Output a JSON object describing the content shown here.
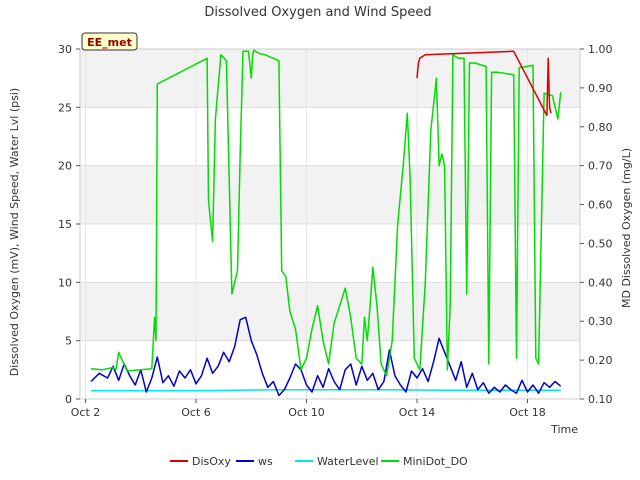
{
  "chart_data": {
    "type": "line",
    "title": "Dissolved Oxygen and Wind Speed",
    "xlabel": "Time",
    "ylabel": "Dissolved Oxygen (mV), Wind Speed, Water Lvl (psi)",
    "y2label": "MD Dissolved Oxygen (mg/L)",
    "badge": "EE_met",
    "xlim": [
      1.8,
      19.9
    ],
    "ylim": [
      0,
      30
    ],
    "y2lim": [
      0.1,
      1.0
    ],
    "x_ticks": [
      2,
      6,
      10,
      14,
      18
    ],
    "x_tick_labels": [
      "Oct 2",
      "Oct 6",
      "Oct 10",
      "Oct 14",
      "Oct 18"
    ],
    "y_ticks": [
      0,
      5,
      10,
      15,
      20,
      25,
      30
    ],
    "y2_ticks": [
      0.1,
      0.2,
      0.3,
      0.4,
      0.5,
      0.6,
      0.7,
      0.8,
      0.9,
      1.0
    ],
    "y2_tick_labels": [
      "0.10",
      "0.20",
      "0.30",
      "0.40",
      "0.50",
      "0.60",
      "0.70",
      "0.80",
      "0.90",
      "1.00"
    ],
    "grid": true,
    "banding": true,
    "legend_position": "bottom",
    "series": [
      {
        "name": "DisOxy",
        "color": "#dd0000",
        "axis": "left",
        "x": [
          14.0,
          14.05,
          14.1,
          14.3,
          17.5,
          18.7,
          18.75,
          18.8,
          18.85
        ],
        "y": [
          27.5,
          28.8,
          29.2,
          29.5,
          29.8,
          24.3,
          29.2,
          25.0,
          24.5
        ]
      },
      {
        "name": "ws",
        "color": "#0000cc",
        "axis": "left",
        "x": [
          2.2,
          2.5,
          2.8,
          3.0,
          3.2,
          3.4,
          3.6,
          3.8,
          4.0,
          4.2,
          4.4,
          4.6,
          4.8,
          5.0,
          5.2,
          5.4,
          5.6,
          5.8,
          6.0,
          6.2,
          6.4,
          6.6,
          6.8,
          7.0,
          7.2,
          7.4,
          7.6,
          7.8,
          8.0,
          8.2,
          8.4,
          8.6,
          8.8,
          9.0,
          9.2,
          9.4,
          9.6,
          9.8,
          10.0,
          10.2,
          10.4,
          10.6,
          10.8,
          11.0,
          11.2,
          11.4,
          11.6,
          11.8,
          12.0,
          12.2,
          12.4,
          12.6,
          12.8,
          13.0,
          13.2,
          13.4,
          13.6,
          13.8,
          14.0,
          14.2,
          14.4,
          14.6,
          14.8,
          15.0,
          15.2,
          15.4,
          15.6,
          15.8,
          16.0,
          16.2,
          16.4,
          16.6,
          16.8,
          17.0,
          17.2,
          17.4,
          17.6,
          17.8,
          18.0,
          18.2,
          18.4,
          18.6,
          18.8,
          19.0,
          19.2
        ],
        "y": [
          1.5,
          2.2,
          1.8,
          2.8,
          1.6,
          3.0,
          2.0,
          1.2,
          2.5,
          0.6,
          1.8,
          3.6,
          1.4,
          2.0,
          1.1,
          2.4,
          1.8,
          2.5,
          1.3,
          2.0,
          3.5,
          2.2,
          2.8,
          4.0,
          3.2,
          4.5,
          6.8,
          7.0,
          5.0,
          3.8,
          2.2,
          1.0,
          1.5,
          0.3,
          0.8,
          1.8,
          3.0,
          2.5,
          1.2,
          0.6,
          2.0,
          1.0,
          2.6,
          1.5,
          0.8,
          2.5,
          3.0,
          1.2,
          2.8,
          1.6,
          2.2,
          0.8,
          1.5,
          4.2,
          2.0,
          1.2,
          0.6,
          2.4,
          1.8,
          2.6,
          1.5,
          3.2,
          5.2,
          4.0,
          2.8,
          1.6,
          3.2,
          1.0,
          2.2,
          0.8,
          1.4,
          0.5,
          1.0,
          0.6,
          1.2,
          0.8,
          0.5,
          1.6,
          0.6,
          1.2,
          0.5,
          1.4,
          1.0,
          1.5,
          1.1
        ]
      },
      {
        "name": "WaterLevel",
        "color": "#00e5e5",
        "axis": "left",
        "x": [
          2.2,
          4.0,
          6.0,
          7.5,
          9.0,
          11.0,
          13.0,
          15.0,
          17.0,
          19.2
        ],
        "y": [
          0.7,
          0.7,
          0.7,
          0.75,
          0.8,
          0.8,
          0.8,
          0.75,
          0.75,
          0.75
        ]
      },
      {
        "name": "MiniDot_DO",
        "color": "#00dd00",
        "axis": "left",
        "x": [
          2.2,
          2.6,
          3.0,
          3.1,
          3.2,
          3.5,
          4.0,
          4.4,
          4.5,
          4.55,
          4.6,
          6.4,
          6.45,
          6.6,
          6.7,
          6.9,
          7.1,
          7.3,
          7.5,
          7.6,
          7.7,
          7.9,
          8.0,
          8.05,
          8.1,
          8.3,
          8.5,
          8.7,
          9.0,
          9.1,
          9.25,
          9.4,
          9.6,
          9.8,
          10.0,
          10.2,
          10.4,
          10.6,
          10.8,
          11.0,
          11.2,
          11.4,
          11.6,
          11.8,
          12.0,
          12.1,
          12.2,
          12.3,
          12.4,
          12.55,
          12.7,
          12.9,
          13.1,
          13.3,
          13.5,
          13.65,
          13.75,
          13.9,
          14.1,
          14.3,
          14.5,
          14.7,
          14.8,
          14.9,
          15.0,
          15.1,
          15.2,
          15.3,
          15.5,
          15.7,
          15.8,
          15.9,
          16.1,
          16.5,
          16.6,
          16.7,
          16.9,
          17.5,
          17.6,
          17.7,
          18.2,
          18.3,
          18.4,
          18.6,
          18.9,
          19.0,
          19.1,
          19.2
        ],
        "y": [
          2.6,
          2.5,
          2.7,
          2.5,
          4.0,
          2.4,
          2.5,
          2.6,
          7.0,
          5.0,
          27.0,
          29.2,
          17.0,
          13.5,
          24.0,
          29.5,
          29.0,
          9.0,
          11.0,
          21.0,
          29.8,
          29.8,
          27.5,
          29.5,
          29.9,
          29.6,
          29.5,
          29.3,
          29.0,
          11.0,
          10.5,
          7.5,
          6.0,
          2.5,
          3.5,
          6.0,
          8.0,
          5.0,
          3.0,
          6.5,
          8.0,
          9.5,
          7.0,
          3.5,
          3.0,
          7.0,
          5.0,
          8.0,
          11.3,
          8.0,
          3.0,
          2.0,
          5.0,
          15.0,
          20.0,
          24.5,
          19.0,
          3.5,
          2.5,
          10.0,
          23.0,
          27.5,
          20.0,
          21.0,
          20.0,
          2.5,
          8.0,
          29.5,
          29.2,
          29.2,
          9.0,
          28.8,
          28.8,
          28.5,
          3.0,
          28.0,
          28.0,
          27.8,
          3.5,
          28.4,
          28.6,
          3.5,
          3.0,
          26.2,
          26.0,
          25.0,
          24.0,
          26.3
        ]
      }
    ]
  }
}
